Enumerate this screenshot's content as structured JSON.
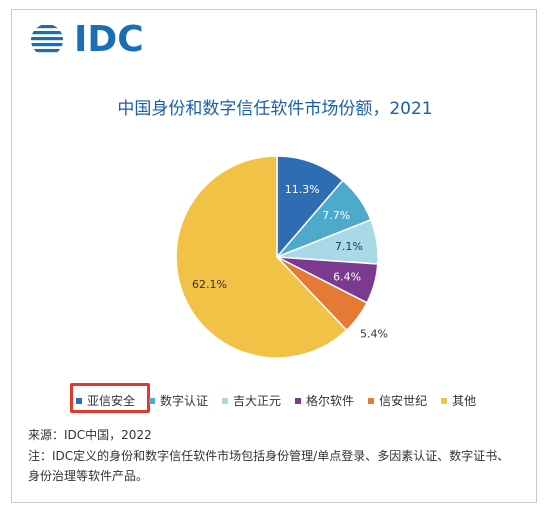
{
  "logo": {
    "text": "IDC"
  },
  "chart_data": {
    "type": "pie",
    "title": "中国身份和数字信任软件市场份额，2021",
    "slices": [
      {
        "name": "亚信安全",
        "value": 11.3,
        "label": "11.3%",
        "color": "#2e6db4"
      },
      {
        "name": "数字认证",
        "value": 7.7,
        "label": "7.7%",
        "color": "#4eaacb"
      },
      {
        "name": "吉大正元",
        "value": 7.1,
        "label": "7.1%",
        "color": "#a9d9e6"
      },
      {
        "name": "格尔软件",
        "value": 6.4,
        "label": "6.4%",
        "color": "#7b3a8f"
      },
      {
        "name": "信安世纪",
        "value": 5.4,
        "label": "5.4%",
        "color": "#e57a34"
      },
      {
        "name": "其他",
        "value": 62.1,
        "label": "62.1%",
        "color": "#f1c246"
      }
    ],
    "legend_position": "bottom",
    "highlighted": "亚信安全"
  },
  "source": "来源：IDC中国，2022",
  "note": "注：IDC定义的身份和数字信任软件市场包括身份管理/单点登录、多因素认证、数字证书、身份治理等软件产品。"
}
